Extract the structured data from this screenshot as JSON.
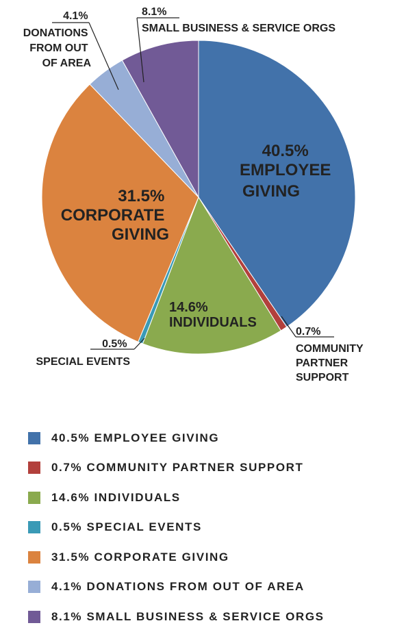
{
  "chart_data": {
    "type": "pie",
    "start_angle_deg": 0,
    "direction": "clockwise",
    "slices": [
      {
        "label": "EMPLOYEE GIVING",
        "value": 40.5,
        "pct": "40.5%",
        "color": "#4272aa",
        "legend": "40.5% EMPLOYEE GIVING"
      },
      {
        "label": "COMMUNITY PARTNER SUPPORT",
        "value": 0.7,
        "pct": "0.7%",
        "color": "#b2403c",
        "legend": "0.7% COMMUNITY PARTNER SUPPORT"
      },
      {
        "label": "INDIVIDUALS",
        "value": 14.6,
        "pct": "14.6%",
        "color": "#8aaa4e",
        "legend": "14.6% INDIVIDUALS"
      },
      {
        "label": "SPECIAL EVENTS",
        "value": 0.5,
        "pct": "0.5%",
        "color": "#3a9ab6",
        "legend": "0.5% SPECIAL EVENTS"
      },
      {
        "label": "CORPORATE GIVING",
        "value": 31.5,
        "pct": "31.5%",
        "color": "#db833f",
        "legend": "31.5% CORPORATE GIVING"
      },
      {
        "label": "DONATIONS FROM OUT OF AREA",
        "value": 4.1,
        "pct": "4.1%",
        "color": "#97aed6",
        "legend": "4.1% DONATIONS FROM OUT OF AREA"
      },
      {
        "label": "SMALL BUSINESS & SERVICE ORGS",
        "value": 8.1,
        "pct": "8.1%",
        "color": "#715a96",
        "legend": "8.1% SMALL BUSINESS & SERVICE ORGS"
      }
    ],
    "slice_labels": {
      "employee": [
        "40.5%",
        "EMPLOYEE",
        "GIVING"
      ],
      "corporate": [
        "31.5%",
        "CORPORATE",
        "GIVING"
      ],
      "individuals": [
        "14.6%",
        "INDIVIDUALS"
      ],
      "community": [
        "0.7%",
        "COMMUNITY",
        "PARTNER",
        "SUPPORT"
      ],
      "special": [
        "0.5%",
        "SPECIAL EVENTS"
      ],
      "donations": [
        "4.1%",
        "DONATIONS",
        "FROM OUT",
        "OF AREA"
      ],
      "smallbiz": [
        "8.1%",
        "SMALL BUSINESS & SERVICE ORGS"
      ]
    },
    "legend_placement": "bottom"
  }
}
